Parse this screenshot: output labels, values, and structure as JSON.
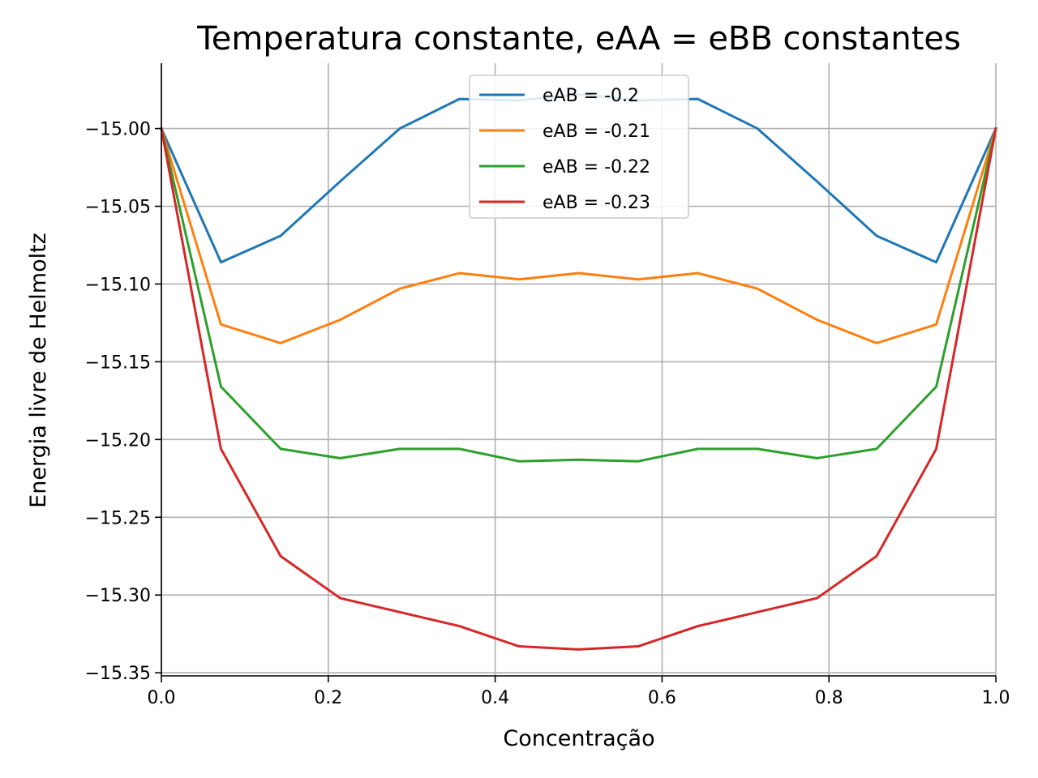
{
  "chart_data": {
    "type": "line",
    "title": "Temperatura constante, eAA = eBB constantes",
    "xlabel": "Concentração",
    "ylabel": "Energia livre de Helmoltz",
    "xlim": [
      0.0,
      1.0
    ],
    "ylim": [
      -15.352,
      -14.958
    ],
    "xticks": [
      0.0,
      0.2,
      0.4,
      0.6,
      0.8,
      1.0
    ],
    "xtick_labels": [
      "0.0",
      "0.2",
      "0.4",
      "0.6",
      "0.8",
      "1.0"
    ],
    "yticks": [
      -15.0,
      -15.05,
      -15.1,
      -15.15,
      -15.2,
      -15.25,
      -15.3,
      -15.35
    ],
    "ytick_labels": [
      "−15.00",
      "−15.05",
      "−15.10",
      "−15.15",
      "−15.20",
      "−15.25",
      "−15.30",
      "−15.35"
    ],
    "grid": true,
    "legend_position": "upper-center",
    "x": [
      0.0,
      0.0714,
      0.1429,
      0.2143,
      0.2857,
      0.3571,
      0.4286,
      0.5,
      0.5714,
      0.6429,
      0.7143,
      0.7857,
      0.8571,
      0.9286,
      1.0
    ],
    "series": [
      {
        "name": "eAB = -0.2",
        "color": "#1f77b4",
        "values": [
          -15.0,
          -15.086,
          -15.069,
          -15.034,
          -15.0,
          -14.981,
          -14.982,
          -14.978,
          -14.982,
          -14.981,
          -15.0,
          -15.034,
          -15.069,
          -15.086,
          -15.0
        ]
      },
      {
        "name": "eAB = -0.21",
        "color": "#ff7f0e",
        "values": [
          -15.0,
          -15.126,
          -15.138,
          -15.123,
          -15.103,
          -15.093,
          -15.097,
          -15.093,
          -15.097,
          -15.093,
          -15.103,
          -15.123,
          -15.138,
          -15.126,
          -15.0
        ]
      },
      {
        "name": "eAB = -0.22",
        "color": "#2ca02c",
        "values": [
          -15.0,
          -15.166,
          -15.206,
          -15.212,
          -15.206,
          -15.206,
          -15.214,
          -15.213,
          -15.214,
          -15.206,
          -15.206,
          -15.212,
          -15.206,
          -15.166,
          -15.0
        ]
      },
      {
        "name": "eAB = -0.23",
        "color": "#d62728",
        "values": [
          -15.0,
          -15.206,
          -15.275,
          -15.302,
          -15.311,
          -15.32,
          -15.333,
          -15.335,
          -15.333,
          -15.32,
          -15.311,
          -15.302,
          -15.275,
          -15.206,
          -15.0
        ]
      }
    ]
  }
}
